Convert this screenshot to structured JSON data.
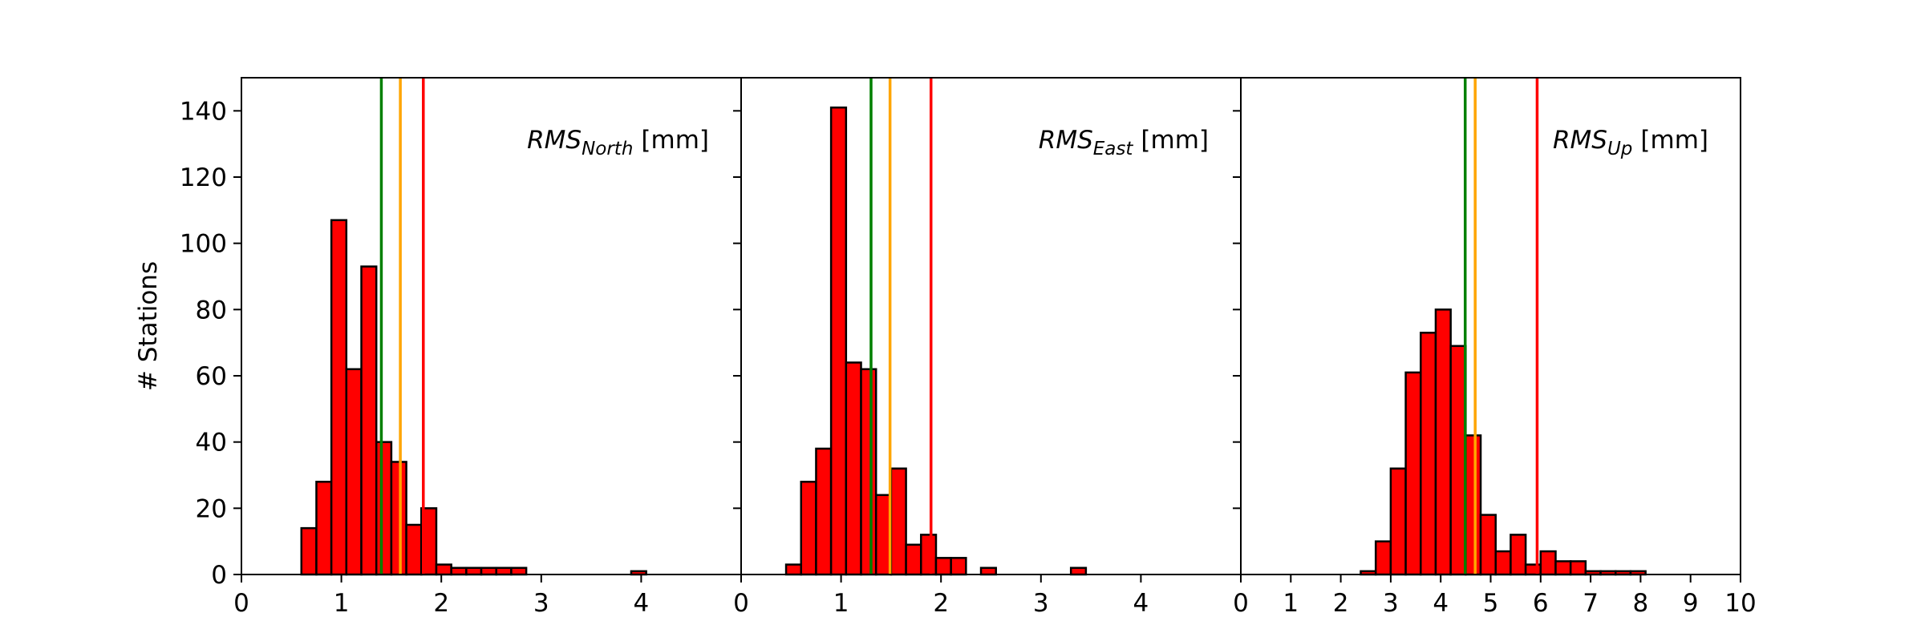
{
  "chart_data": [
    {
      "type": "histogram",
      "ylabel": "# Stations",
      "label": {
        "main": "RMS",
        "sub": "North",
        "unit": "[mm]"
      },
      "bins": [
        0.6,
        0.75,
        0.9,
        1.05,
        1.2,
        1.35,
        1.5,
        1.65,
        1.8,
        1.95,
        2.1,
        2.25,
        2.4,
        2.55,
        2.7,
        2.85,
        3.0,
        3.15,
        3.3,
        3.45,
        3.6,
        3.75,
        3.9,
        4.05
      ],
      "values": [
        14,
        28,
        107,
        62,
        93,
        40,
        34,
        15,
        20,
        3,
        2,
        2,
        2,
        2,
        2,
        0,
        0,
        0,
        0,
        0,
        0,
        0,
        1
      ],
      "color": "#ff0000",
      "edgecolor": "#000000",
      "xlim": [
        0,
        5
      ],
      "xticks": [
        0,
        1,
        2,
        3,
        4
      ],
      "ylim": [
        0,
        150
      ],
      "yticks": [
        0,
        20,
        40,
        60,
        80,
        100,
        120,
        140
      ],
      "vlines": [
        {
          "value": 1.4,
          "color": "green"
        },
        {
          "value": 1.59,
          "color": "orange"
        },
        {
          "value": 1.82,
          "color": "red"
        }
      ]
    },
    {
      "type": "histogram",
      "label": {
        "main": "RMS",
        "sub": "East",
        "unit": "[mm]"
      },
      "bins": [
        0.45,
        0.6,
        0.75,
        0.9,
        1.05,
        1.2,
        1.35,
        1.5,
        1.65,
        1.8,
        1.95,
        2.1,
        2.25,
        2.4,
        2.55,
        2.7,
        2.85,
        3.0,
        3.15,
        3.3,
        3.45
      ],
      "values": [
        3,
        28,
        38,
        141,
        64,
        62,
        24,
        32,
        9,
        12,
        5,
        5,
        0,
        2,
        0,
        0,
        0,
        0,
        0,
        2
      ],
      "color": "#ff0000",
      "edgecolor": "#000000",
      "xlim": [
        0,
        5
      ],
      "xticks": [
        0,
        1,
        2,
        3,
        4
      ],
      "ylim": [
        0,
        150
      ],
      "vlines": [
        {
          "value": 1.3,
          "color": "green"
        },
        {
          "value": 1.49,
          "color": "orange"
        },
        {
          "value": 1.9,
          "color": "red"
        }
      ]
    },
    {
      "type": "histogram",
      "label": {
        "main": "RMS",
        "sub": "Up",
        "unit": "[mm]"
      },
      "bins": [
        2.4,
        2.7,
        3.0,
        3.3,
        3.6,
        3.9,
        4.2,
        4.5,
        4.8,
        5.1,
        5.4,
        5.7,
        6.0,
        6.3,
        6.6,
        6.9,
        7.2,
        7.5,
        7.8,
        8.1
      ],
      "values": [
        1,
        10,
        32,
        61,
        73,
        80,
        69,
        42,
        18,
        7,
        12,
        3,
        7,
        4,
        4,
        1,
        1,
        1,
        1
      ],
      "color": "#ff0000",
      "edgecolor": "#000000",
      "xlim": [
        0,
        10
      ],
      "xticks": [
        0,
        1,
        2,
        3,
        4,
        5,
        6,
        7,
        8,
        9,
        10
      ],
      "ylim": [
        0,
        150
      ],
      "vlines": [
        {
          "value": 4.49,
          "color": "green"
        },
        {
          "value": 4.69,
          "color": "orange"
        },
        {
          "value": 5.93,
          "color": "red"
        }
      ]
    }
  ]
}
